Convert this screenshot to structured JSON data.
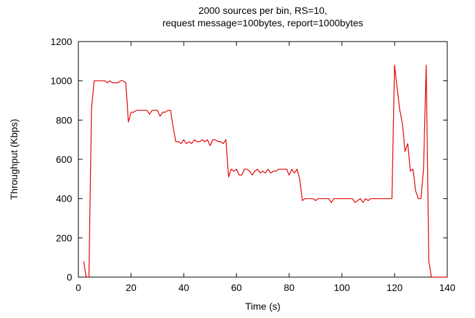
{
  "chart_data": {
    "type": "line",
    "title_lines": [
      "2000 sources per bin, RS=10,",
      "request message=100bytes, report=1000bytes"
    ],
    "xlabel": "Time (s)",
    "ylabel": "Throughput (Kbps)",
    "xlim": [
      0,
      140
    ],
    "ylim": [
      0,
      1200
    ],
    "xticks": [
      0,
      20,
      40,
      60,
      80,
      100,
      120,
      140
    ],
    "yticks": [
      0,
      200,
      400,
      600,
      800,
      1000,
      1200
    ],
    "grid": false,
    "legend": "none",
    "series": [
      {
        "color": "#e00000",
        "x": [
          2,
          3,
          4,
          5,
          6,
          7,
          8,
          9,
          10,
          11,
          12,
          13,
          14,
          15,
          16,
          17,
          18,
          19,
          20,
          21,
          22,
          23,
          24,
          25,
          26,
          27,
          28,
          29,
          30,
          31,
          32,
          33,
          34,
          35,
          36,
          37,
          38,
          39,
          40,
          41,
          42,
          43,
          44,
          45,
          46,
          47,
          48,
          49,
          50,
          51,
          52,
          53,
          54,
          55,
          56,
          57,
          58,
          59,
          60,
          61,
          62,
          63,
          64,
          65,
          66,
          67,
          68,
          69,
          70,
          71,
          72,
          73,
          74,
          75,
          76,
          77,
          78,
          79,
          80,
          81,
          82,
          83,
          84,
          85,
          86,
          87,
          88,
          89,
          90,
          91,
          92,
          93,
          94,
          95,
          96,
          97,
          98,
          99,
          100,
          101,
          102,
          103,
          104,
          105,
          106,
          107,
          108,
          109,
          110,
          111,
          112,
          113,
          114,
          115,
          116,
          117,
          118,
          119,
          120,
          121,
          122,
          123,
          124,
          125,
          126,
          127,
          128,
          129,
          130,
          131,
          132,
          133,
          134,
          135,
          136,
          137,
          138,
          139,
          140
        ],
        "values": [
          80,
          0,
          0,
          860,
          1000,
          1000,
          1000,
          1000,
          1000,
          990,
          1000,
          990,
          990,
          990,
          1000,
          1000,
          990,
          790,
          840,
          840,
          850,
          850,
          850,
          850,
          850,
          830,
          850,
          850,
          850,
          820,
          840,
          840,
          850,
          850,
          760,
          690,
          690,
          680,
          700,
          680,
          690,
          680,
          700,
          690,
          690,
          700,
          690,
          700,
          670,
          700,
          700,
          690,
          690,
          680,
          700,
          510,
          550,
          540,
          550,
          520,
          520,
          550,
          550,
          540,
          520,
          540,
          550,
          530,
          540,
          530,
          550,
          530,
          540,
          540,
          550,
          550,
          550,
          550,
          520,
          550,
          530,
          550,
          500,
          390,
          400,
          400,
          400,
          400,
          390,
          400,
          400,
          400,
          400,
          400,
          380,
          400,
          400,
          400,
          400,
          400,
          400,
          400,
          400,
          380,
          390,
          400,
          380,
          400,
          390,
          400,
          400,
          400,
          400,
          400,
          400,
          400,
          400,
          400,
          1080,
          960,
          850,
          780,
          640,
          680,
          540,
          550,
          440,
          400,
          400,
          550,
          1080,
          80,
          0,
          0,
          0,
          0,
          0,
          0,
          0
        ]
      }
    ]
  }
}
